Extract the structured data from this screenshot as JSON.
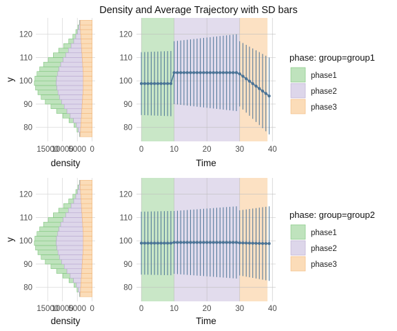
{
  "title": "Density and Average Trajectory with SD bars",
  "colors": {
    "phase1": "#bfe3bd",
    "phase2": "#ddd6ea",
    "phase3": "#fbdcb8",
    "phase1_stroke": "#7cc47a",
    "phase2_stroke": "#b9a9d0",
    "phase3_stroke": "#f2b77a",
    "trajectory": "#4a7396",
    "grid": "#d9d9d9"
  },
  "chart_data": [
    {
      "type": "histogram",
      "panel": "group1-density",
      "xlabel": "density",
      "ylabel": "y",
      "x_ticks": [
        "15000",
        "10000",
        "5000",
        "0"
      ],
      "x_tick_values": [
        15000,
        10000,
        5000,
        0
      ],
      "xlim": [
        19000,
        -1000
      ],
      "y_ticks": [
        80,
        90,
        100,
        110,
        120
      ],
      "ylim": [
        74,
        127
      ],
      "bin_width": 2,
      "bin_centers": [
        77,
        79,
        81,
        83,
        85,
        87,
        89,
        91,
        93,
        95,
        97,
        99,
        101,
        103,
        105,
        107,
        109,
        111,
        113,
        115,
        117,
        119,
        121,
        123,
        125
      ],
      "series": [
        {
          "name": "phase1",
          "values": [
            100,
            400,
            800,
            1500,
            2500,
            3500,
            4500,
            5500,
            6200,
            6800,
            7200,
            7400,
            7300,
            7000,
            6500,
            5800,
            5000,
            4200,
            3300,
            2500,
            1700,
            1000,
            600,
            300,
            100
          ]
        },
        {
          "name": "phase2",
          "values": [
            200,
            800,
            1500,
            2600,
            3800,
            5000,
            6000,
            7000,
            7800,
            8400,
            8900,
            9100,
            9000,
            8600,
            8100,
            7400,
            6500,
            5500,
            4500,
            3500,
            2500,
            1700,
            1000,
            500,
            200
          ]
        },
        {
          "name": "phase3",
          "values": [
            4000,
            3900,
            3800,
            3700,
            3600,
            3500,
            3400,
            3300,
            3200,
            3100,
            3000,
            3000,
            3000,
            3000,
            3100,
            3200,
            3300,
            3400,
            3500,
            3600,
            3700,
            3800,
            3900,
            4000,
            4000
          ]
        }
      ]
    },
    {
      "type": "line",
      "panel": "group1-trajectory",
      "xlabel": "Time",
      "ylabel": "",
      "x_ticks": [
        0,
        10,
        20,
        30,
        40
      ],
      "y_ticks": [
        80,
        90,
        100,
        110,
        120
      ],
      "xlim": [
        -1.5,
        41
      ],
      "ylim": [
        74,
        127
      ],
      "phases": [
        {
          "name": "phase1",
          "start": 0,
          "end": 10
        },
        {
          "name": "phase2",
          "start": 10,
          "end": 30
        },
        {
          "name": "phase3",
          "start": 30,
          "end": 38.5
        }
      ],
      "mean": {
        "segments": [
          {
            "from": 0,
            "to": 9,
            "start": 98.8,
            "end": 98.8
          },
          {
            "from": 10,
            "to": 29,
            "start": 103.5,
            "end": 103.5
          },
          {
            "from": 30,
            "to": 39,
            "start": 103.0,
            "end": 93.5
          }
        ]
      },
      "sd": {
        "segments": [
          {
            "from": 0,
            "to": 9,
            "start": 13.5,
            "end": 14.0
          },
          {
            "from": 10,
            "to": 29,
            "start": 13.5,
            "end": 16.5
          },
          {
            "from": 30,
            "to": 39,
            "start": 14.0,
            "end": 16.5
          }
        ]
      }
    },
    {
      "type": "histogram",
      "panel": "group2-density",
      "xlabel": "density",
      "ylabel": "y",
      "x_ticks": [
        "15000",
        "10000",
        "5000",
        "0"
      ],
      "x_tick_values": [
        15000,
        10000,
        5000,
        0
      ],
      "xlim": [
        19000,
        -1000
      ],
      "y_ticks": [
        80,
        90,
        100,
        110,
        120
      ],
      "ylim": [
        74,
        127
      ],
      "bin_width": 2,
      "bin_centers": [
        77,
        79,
        81,
        83,
        85,
        87,
        89,
        91,
        93,
        95,
        97,
        99,
        101,
        103,
        105,
        107,
        109,
        111,
        113,
        115,
        117,
        119,
        121,
        123,
        125
      ],
      "series": [
        {
          "name": "phase1",
          "values": [
            100,
            400,
            800,
            1500,
            2500,
            3500,
            4500,
            5500,
            6200,
            6800,
            7200,
            7400,
            7300,
            7000,
            6500,
            5800,
            5000,
            4200,
            3300,
            2500,
            1700,
            1000,
            600,
            300,
            100
          ]
        },
        {
          "name": "phase2",
          "values": [
            200,
            800,
            1500,
            2600,
            3800,
            5000,
            6000,
            7000,
            7800,
            8400,
            8900,
            9100,
            9000,
            8600,
            8100,
            7400,
            6500,
            5500,
            4500,
            3500,
            2500,
            1700,
            1000,
            500,
            200
          ]
        },
        {
          "name": "phase3",
          "values": [
            4000,
            3900,
            3800,
            3700,
            3600,
            3500,
            3400,
            3300,
            3200,
            3100,
            3000,
            3000,
            3000,
            3000,
            3100,
            3200,
            3300,
            3400,
            3500,
            3600,
            3700,
            3800,
            3900,
            4000,
            4000
          ]
        }
      ]
    },
    {
      "type": "line",
      "panel": "group2-trajectory",
      "xlabel": "Time",
      "ylabel": "",
      "x_ticks": [
        0,
        10,
        20,
        30,
        40
      ],
      "y_ticks": [
        80,
        90,
        100,
        110,
        120
      ],
      "xlim": [
        -1.5,
        41
      ],
      "ylim": [
        74,
        127
      ],
      "phases": [
        {
          "name": "phase1",
          "start": 0,
          "end": 10
        },
        {
          "name": "phase2",
          "start": 10,
          "end": 30
        },
        {
          "name": "phase3",
          "start": 30,
          "end": 38.5
        }
      ],
      "mean": {
        "segments": [
          {
            "from": 0,
            "to": 9,
            "start": 99.0,
            "end": 99.0
          },
          {
            "from": 10,
            "to": 29,
            "start": 99.3,
            "end": 99.3
          },
          {
            "from": 30,
            "to": 39,
            "start": 99.1,
            "end": 98.8
          }
        ]
      },
      "sd": {
        "segments": [
          {
            "from": 0,
            "to": 9,
            "start": 13.5,
            "end": 13.8
          },
          {
            "from": 10,
            "to": 29,
            "start": 13.5,
            "end": 15.5
          },
          {
            "from": 30,
            "to": 39,
            "start": 14.0,
            "end": 16.0
          }
        ]
      }
    }
  ],
  "legends": [
    {
      "title": "phase: group=group1",
      "items": [
        "phase1",
        "phase2",
        "phase3"
      ]
    },
    {
      "title": "phase: group=group2",
      "items": [
        "phase1",
        "phase2",
        "phase3"
      ]
    }
  ]
}
